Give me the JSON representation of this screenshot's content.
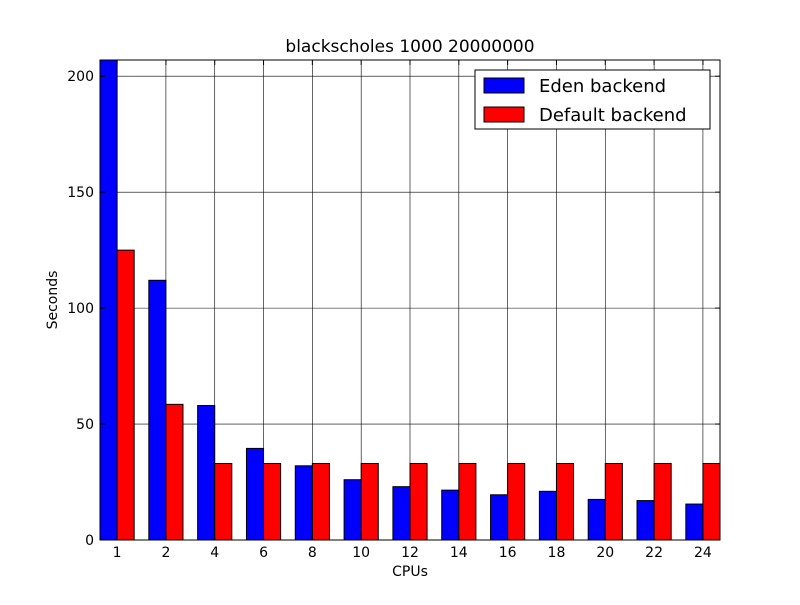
{
  "chart_data": {
    "type": "bar",
    "title": "blackscholes 1000 20000000",
    "xlabel": "CPUs",
    "ylabel": "Seconds",
    "ylim": [
      0,
      207
    ],
    "yticks": [
      0,
      50,
      100,
      150,
      200
    ],
    "grid": true,
    "legend_position": "top-right",
    "categories": [
      "1",
      "2",
      "4",
      "6",
      "8",
      "10",
      "12",
      "14",
      "16",
      "18",
      "20",
      "22",
      "24"
    ],
    "series": [
      {
        "name": "Eden backend",
        "color": "#0000ff",
        "values": [
          207,
          112,
          58,
          39.5,
          32,
          26,
          23,
          21.5,
          19.5,
          21,
          17.5,
          17,
          15.5
        ]
      },
      {
        "name": "Default backend",
        "color": "#ff0000",
        "values": [
          125,
          58.5,
          33,
          33,
          33,
          33,
          33,
          33,
          33,
          33,
          33,
          33,
          33
        ]
      }
    ]
  }
}
